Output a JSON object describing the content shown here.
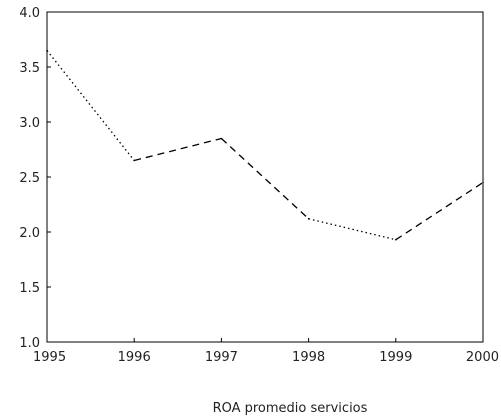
{
  "chart_data": {
    "type": "line",
    "title": "",
    "xlabel": "ROA promedio servicios",
    "ylabel": "",
    "x": [
      1995,
      1996,
      1997,
      1998,
      1999,
      2000
    ],
    "series": [
      {
        "values": [
          3.65,
          2.65,
          2.85,
          2.12,
          1.93,
          2.45
        ]
      }
    ],
    "segment_styles": [
      "dotted",
      "dashed",
      "dashed",
      "dotted",
      "dashed"
    ],
    "xlim": [
      1995,
      2000
    ],
    "ylim": [
      1.0,
      4.0
    ],
    "yticks": [
      1.0,
      1.5,
      2.0,
      2.5,
      3.0,
      3.5,
      4.0
    ],
    "ytick_labels": [
      "1.0",
      "1.5",
      "2.0",
      "2.5",
      "3.0",
      "3.5",
      "4.0"
    ],
    "xticks": [
      1995,
      1996,
      1997,
      1998,
      1999,
      2000
    ],
    "xtick_labels": [
      "1995",
      "1996",
      "1997",
      "1998",
      "1999",
      "2000"
    ],
    "grid": false,
    "legend": "none",
    "line_color": "#000000"
  }
}
